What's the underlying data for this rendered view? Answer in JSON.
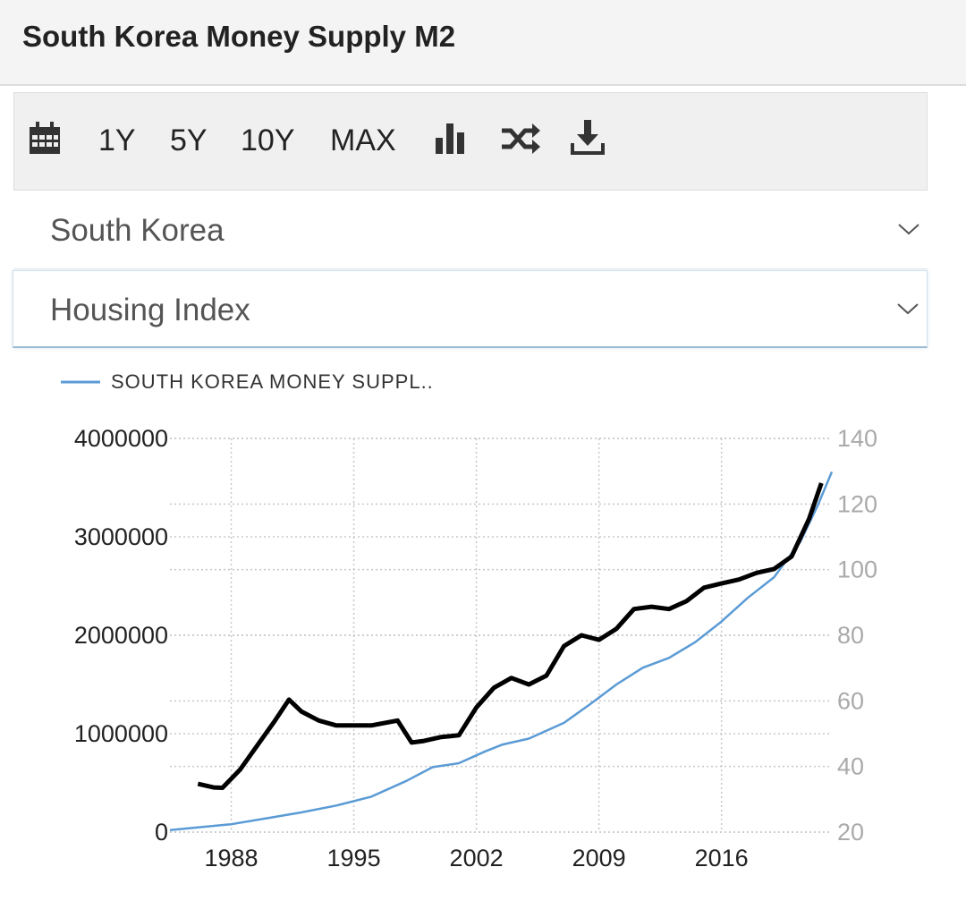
{
  "header": {
    "title": "South Korea Money Supply M2"
  },
  "toolbar": {
    "buttons": [
      "1Y",
      "5Y",
      "10Y",
      "MAX"
    ]
  },
  "selectors": [
    "South Korea",
    "Housing Index"
  ],
  "chart_data": {
    "type": "line",
    "xlim": [
      1984.5,
      2022.3
    ],
    "xticks": [
      1988,
      1995,
      2002,
      2009,
      2016
    ],
    "ylim": [
      0,
      4000000
    ],
    "yticks": [
      0,
      1000000,
      2000000,
      3000000,
      4000000
    ],
    "y2lim": [
      20,
      140
    ],
    "y2ticks": [
      20,
      40,
      60,
      80,
      100,
      120,
      140
    ],
    "grid": true,
    "series": [
      {
        "name": "SOUTH KOREA MONEY SUPPL..",
        "color": "#5b9bd5",
        "x": [
          1984.5,
          1988,
          1990,
          1992,
          1994,
          1996,
          1998,
          1999.5,
          2001,
          2002.5,
          2003.5,
          2005,
          2007,
          2008.5,
          2010,
          2011.5,
          2013,
          2014.5,
          2016,
          2017.5,
          2019,
          2020.5,
          2021.5,
          2022.3
        ],
        "values": [
          20000,
          80000,
          140000,
          200000,
          270000,
          360000,
          520000,
          660000,
          700000,
          820000,
          890000,
          950000,
          1110000,
          1300000,
          1500000,
          1670000,
          1770000,
          1930000,
          2140000,
          2380000,
          2590000,
          2950000,
          3320000,
          3660000
        ]
      },
      {
        "color": "#000000",
        "axis": "y2",
        "x": [
          1986.1,
          1987,
          1987.5,
          1988.5,
          1989.5,
          1990.5,
          1991.3,
          1992,
          1993,
          1994,
          1996,
          1997.5,
          1998.3,
          1999,
          2000,
          2001,
          2002,
          2003,
          2004,
          2005,
          2006,
          2007,
          2008,
          2009,
          2010,
          2011,
          2012,
          2013,
          2014,
          2015,
          2016,
          2017,
          2018,
          2019,
          2020,
          2021,
          2021.7
        ],
        "values": [
          34.7,
          33.6,
          33.5,
          39,
          46.5,
          54,
          60.4,
          56.8,
          54,
          52.5,
          52.5,
          54,
          47.3,
          47.8,
          49,
          49.5,
          58,
          64,
          67,
          65,
          67.7,
          76.7,
          80,
          78.6,
          82,
          88,
          88.7,
          88,
          90.4,
          94.5,
          95.8,
          97,
          99,
          100.2,
          104,
          115.5,
          126.4
        ]
      }
    ]
  }
}
